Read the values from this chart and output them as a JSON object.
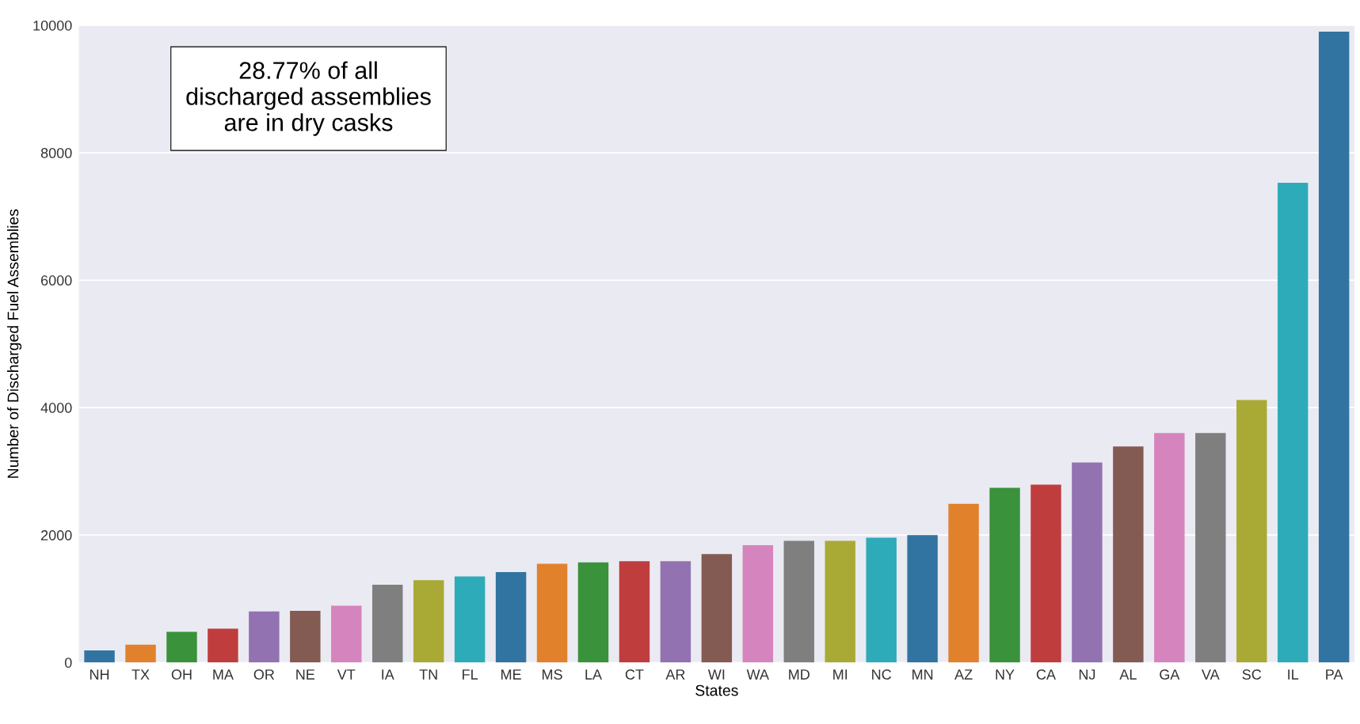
{
  "chart_data": {
    "type": "bar",
    "xlabel": "States",
    "ylabel": "Number of Discharged Fuel Assemblies",
    "categories": [
      "NH",
      "TX",
      "OH",
      "MA",
      "OR",
      "NE",
      "VT",
      "IA",
      "TN",
      "FL",
      "ME",
      "MS",
      "LA",
      "CT",
      "AR",
      "WI",
      "WA",
      "MD",
      "MI",
      "NC",
      "MN",
      "AZ",
      "NY",
      "CA",
      "NJ",
      "AL",
      "GA",
      "VA",
      "SC",
      "IL",
      "PA"
    ],
    "values": [
      190,
      280,
      480,
      530,
      800,
      810,
      890,
      1220,
      1290,
      1350,
      1420,
      1550,
      1570,
      1590,
      1590,
      1700,
      1840,
      1910,
      1910,
      1960,
      2000,
      2490,
      2740,
      2790,
      3140,
      3390,
      3600,
      3600,
      4120,
      7530,
      9900
    ],
    "colors": [
      "#3274a1",
      "#e1812c",
      "#3a923a",
      "#c03d3e",
      "#9372b2",
      "#845b53",
      "#d684bd",
      "#7f7f7f",
      "#a9aa35",
      "#2eabb8",
      "#3274a1",
      "#e1812c",
      "#3a923a",
      "#c03d3e",
      "#9372b2",
      "#845b53",
      "#d684bd",
      "#7f7f7f",
      "#a9aa35",
      "#2eabb8",
      "#3274a1",
      "#e1812c",
      "#3a923a",
      "#c03d3e",
      "#9372b2",
      "#845b53",
      "#d684bd",
      "#7f7f7f",
      "#a9aa35",
      "#2eabb8",
      "#3274a1"
    ],
    "ylim": [
      0,
      10000
    ],
    "yticks": [
      0,
      2000,
      4000,
      6000,
      8000,
      10000
    ],
    "grid": "y",
    "annotations": [
      "28.77% of all\ndischarged assemblies\nare in dry casks"
    ]
  }
}
